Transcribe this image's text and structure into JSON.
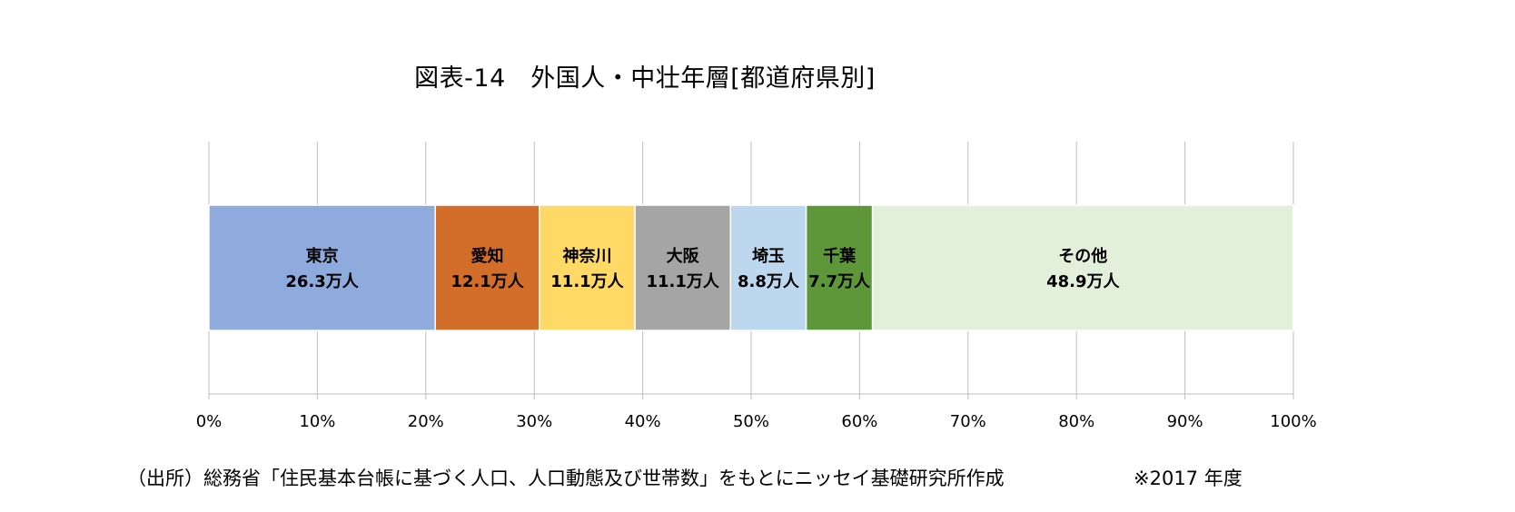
{
  "chart_data": {
    "type": "bar",
    "orientation": "horizontal-stacked-100",
    "title": "図表-14　外国人・中壮年層[都道府県別]",
    "segments": [
      {
        "label": "東京",
        "amount": 26.3,
        "amount_text": "26.3万人",
        "color": "#8FAADC"
      },
      {
        "label": "愛知",
        "amount": 12.1,
        "amount_text": "12.1万人",
        "color": "#D36E2A"
      },
      {
        "label": "神奈川",
        "amount": 11.1,
        "amount_text": "11.1万人",
        "color": "#FFD966"
      },
      {
        "label": "大阪",
        "amount": 11.1,
        "amount_text": "11.1万人",
        "color": "#A5A5A5"
      },
      {
        "label": "埼玉",
        "amount": 8.8,
        "amount_text": "8.8万人",
        "color": "#BDD7EE"
      },
      {
        "label": "千葉",
        "amount": 7.7,
        "amount_text": "7.7万人",
        "color": "#5E963A"
      },
      {
        "label": "その他",
        "amount": 48.9,
        "amount_text": "48.9万人",
        "color": "#E2EFDA"
      }
    ],
    "x_ticks": [
      "0%",
      "10%",
      "20%",
      "30%",
      "40%",
      "50%",
      "60%",
      "70%",
      "80%",
      "90%",
      "100%"
    ],
    "xlim": [
      0,
      100
    ],
    "grid": true,
    "legend": "none"
  },
  "footer": {
    "source": "（出所）総務省「住民基本台帳に基づく人口、人口動態及び世帯数」をもとにニッセイ基礎研究所作成",
    "year": "※2017 年度"
  }
}
